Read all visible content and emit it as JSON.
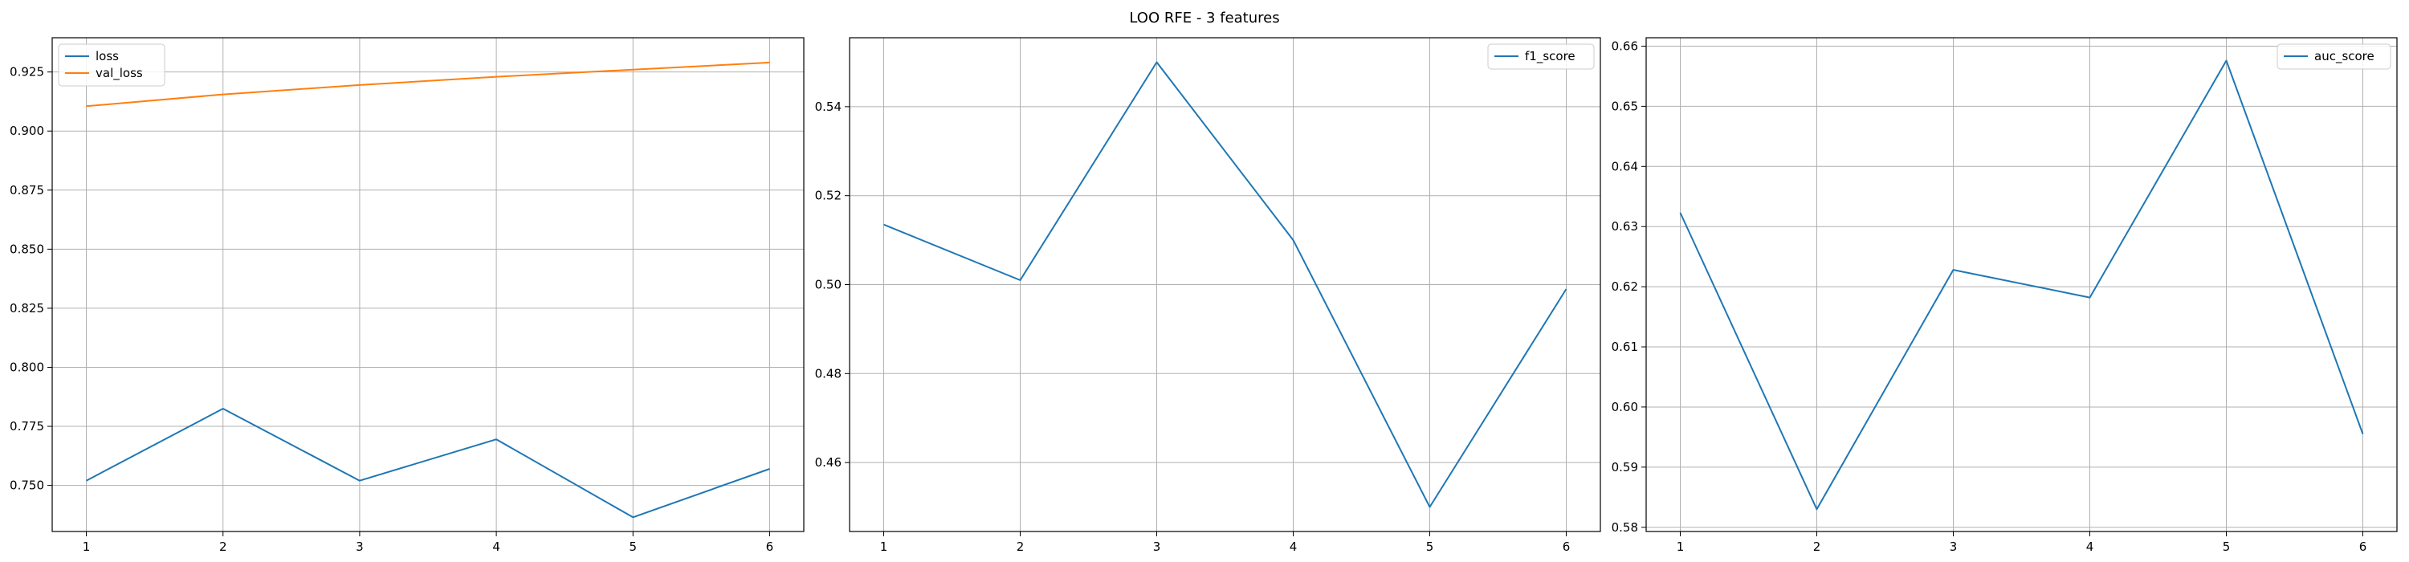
{
  "figure": {
    "title": "LOO RFE - 3 features"
  },
  "chart_data": [
    {
      "type": "line",
      "x": [
        1,
        2,
        3,
        4,
        5,
        6
      ],
      "xticks": [
        1,
        2,
        3,
        4,
        5,
        6
      ],
      "ylim": [
        0.7305,
        0.9395
      ],
      "yticks": [
        0.75,
        0.775,
        0.8,
        0.825,
        0.85,
        0.875,
        0.9,
        0.925
      ],
      "ytick_decimals": 3,
      "grid": true,
      "legend_position": "top-left",
      "series": [
        {
          "name": "loss",
          "color": "#1f77b4",
          "values": [
            0.752,
            0.7825,
            0.752,
            0.7695,
            0.7365,
            0.757
          ]
        },
        {
          "name": "val_loss",
          "color": "#ff7f0e",
          "values": [
            0.9105,
            0.9155,
            0.9195,
            0.923,
            0.926,
            0.929
          ]
        }
      ]
    },
    {
      "type": "line",
      "x": [
        1,
        2,
        3,
        4,
        5,
        6
      ],
      "xticks": [
        1,
        2,
        3,
        4,
        5,
        6
      ],
      "ylim": [
        0.4445,
        0.5555
      ],
      "yticks": [
        0.46,
        0.48,
        0.5,
        0.52,
        0.54
      ],
      "ytick_decimals": 2,
      "grid": true,
      "legend_position": "top-right",
      "series": [
        {
          "name": "f1_score",
          "color": "#1f77b4",
          "values": [
            0.5135,
            0.501,
            0.55,
            0.51,
            0.45,
            0.499
          ]
        }
      ]
    },
    {
      "type": "line",
      "x": [
        1,
        2,
        3,
        4,
        5,
        6
      ],
      "xticks": [
        1,
        2,
        3,
        4,
        5,
        6
      ],
      "ylim": [
        0.5793,
        0.6614
      ],
      "yticks": [
        0.58,
        0.59,
        0.6,
        0.61,
        0.62,
        0.63,
        0.64,
        0.65,
        0.66
      ],
      "ytick_decimals": 2,
      "grid": true,
      "legend_position": "top-right",
      "series": [
        {
          "name": "auc_score",
          "color": "#1f77b4",
          "values": [
            0.6323,
            0.583,
            0.6228,
            0.6182,
            0.6576,
            0.5955
          ]
        }
      ]
    }
  ]
}
